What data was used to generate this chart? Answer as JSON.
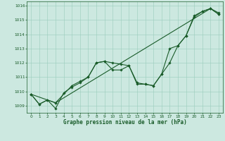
{
  "background_color": "#cce8e0",
  "grid_color": "#99ccbb",
  "line_color": "#1a5c2a",
  "text_color": "#1a5c2a",
  "xlabel": "Graphe pression niveau de la mer (hPa)",
  "xlim": [
    -0.5,
    23.5
  ],
  "ylim": [
    1008.5,
    1016.3
  ],
  "yticks": [
    1009,
    1010,
    1011,
    1012,
    1013,
    1014,
    1015,
    1016
  ],
  "xticks": [
    0,
    1,
    2,
    3,
    4,
    5,
    6,
    7,
    8,
    9,
    10,
    11,
    12,
    13,
    14,
    15,
    16,
    17,
    18,
    19,
    20,
    21,
    22,
    23
  ],
  "series1": {
    "x": [
      0,
      1,
      2,
      3,
      4,
      5,
      6,
      7,
      8,
      9,
      10,
      11,
      12,
      13,
      14,
      15,
      16,
      17,
      18,
      19,
      20,
      21,
      22,
      23
    ],
    "y": [
      1009.8,
      1009.1,
      1009.4,
      1008.8,
      1009.9,
      1010.3,
      1010.6,
      1011.0,
      1012.0,
      1012.1,
      1012.0,
      1011.9,
      1011.8,
      1010.5,
      1010.5,
      1010.4,
      1011.2,
      1012.0,
      1013.2,
      1013.9,
      1015.2,
      1015.6,
      1015.8,
      1015.4
    ]
  },
  "series2": {
    "x": [
      0,
      1,
      2,
      3,
      22,
      23
    ],
    "y": [
      1009.8,
      1009.1,
      1009.4,
      1009.2,
      1015.8,
      1015.5
    ]
  },
  "series3": {
    "x": [
      0,
      3,
      5,
      6,
      7,
      8,
      9,
      10,
      11,
      12,
      13,
      14,
      15,
      16,
      17,
      18,
      19,
      20,
      21,
      22,
      23
    ],
    "y": [
      1009.8,
      1009.2,
      1010.4,
      1010.7,
      1011.0,
      1012.0,
      1012.1,
      1011.5,
      1011.5,
      1011.8,
      1010.6,
      1010.5,
      1010.4,
      1011.2,
      1013.0,
      1013.2,
      1013.9,
      1015.3,
      1015.6,
      1015.8,
      1015.4
    ]
  },
  "marker_size": 1.8,
  "line_width": 0.8,
  "tick_labelsize": 4.2,
  "xlabel_fontsize": 5.5
}
